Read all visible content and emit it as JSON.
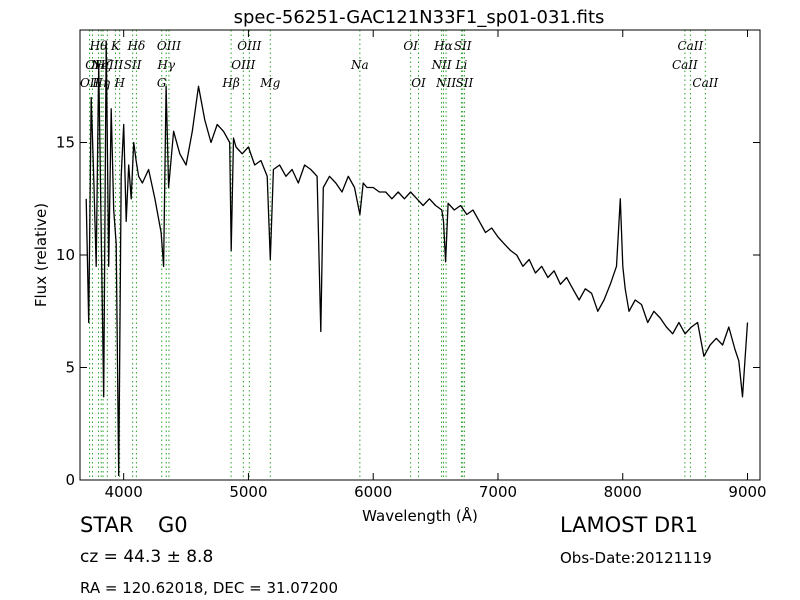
{
  "chart_data": {
    "type": "line",
    "title": "spec-56251-GAC121N33F1_sp01-031.fits",
    "xlabel": "Wavelength (Å)",
    "ylabel": "Flux (relative)",
    "xlim": [
      3650,
      9100
    ],
    "ylim": [
      0,
      20
    ],
    "xticks": [
      4000,
      5000,
      6000,
      7000,
      8000,
      9000
    ],
    "yticks": [
      0,
      5,
      10,
      15
    ],
    "grid": false,
    "line_color": "#000000",
    "marker_color": "#2ca02c",
    "series": [
      {
        "x": [
          3700,
          3720,
          3740,
          3760,
          3780,
          3800,
          3820,
          3840,
          3860,
          3880,
          3900,
          3920,
          3940,
          3960,
          3980,
          4000,
          4020,
          4040,
          4060,
          4080,
          4100,
          4120,
          4150,
          4200,
          4250,
          4300,
          4320,
          4340,
          4360,
          4400,
          4450,
          4500,
          4550,
          4600,
          4650,
          4700,
          4750,
          4800,
          4850,
          4862,
          4880,
          4900,
          4950,
          5000,
          5050,
          5100,
          5150,
          5175,
          5200,
          5250,
          5300,
          5350,
          5400,
          5450,
          5500,
          5550,
          5580,
          5600,
          5650,
          5700,
          5750,
          5800,
          5850,
          5893,
          5920,
          5950,
          6000,
          6050,
          6100,
          6150,
          6200,
          6250,
          6300,
          6350,
          6400,
          6450,
          6500,
          6550,
          6563,
          6580,
          6600,
          6650,
          6700,
          6750,
          6800,
          6850,
          6900,
          6950,
          7000,
          7050,
          7100,
          7150,
          7200,
          7250,
          7300,
          7350,
          7400,
          7450,
          7500,
          7550,
          7600,
          7650,
          7700,
          7750,
          7800,
          7850,
          7900,
          7950,
          7980,
          8000,
          8020,
          8050,
          8100,
          8150,
          8200,
          8250,
          8300,
          8350,
          8400,
          8450,
          8500,
          8550,
          8600,
          8650,
          8700,
          8750,
          8800,
          8850,
          8900,
          8930,
          8960,
          9000
        ],
        "y": [
          12.5,
          7.0,
          17.0,
          13.5,
          9.5,
          18.5,
          11.0,
          3.7,
          19.5,
          9.5,
          16.5,
          12.0,
          10.5,
          0.2,
          13.5,
          15.8,
          11.5,
          14.0,
          12.5,
          15.0,
          14.2,
          13.5,
          13.2,
          13.8,
          12.5,
          11.0,
          9.5,
          17.5,
          13.0,
          15.5,
          14.5,
          14.0,
          15.5,
          17.5,
          16.0,
          15.0,
          15.8,
          15.5,
          15.0,
          10.2,
          15.2,
          14.8,
          14.5,
          14.8,
          14.0,
          14.2,
          13.5,
          9.8,
          13.8,
          14.0,
          13.5,
          13.8,
          13.2,
          14.0,
          13.8,
          13.5,
          6.6,
          13.0,
          13.5,
          13.2,
          12.8,
          13.5,
          13.0,
          11.8,
          13.2,
          13.0,
          13.0,
          12.8,
          12.8,
          12.5,
          12.8,
          12.5,
          12.8,
          12.5,
          12.2,
          12.5,
          12.2,
          12.0,
          11.5,
          9.7,
          12.3,
          12.0,
          12.2,
          11.8,
          12.0,
          11.5,
          11.0,
          11.2,
          10.8,
          10.5,
          10.2,
          10.0,
          9.5,
          9.8,
          9.2,
          9.5,
          9.0,
          9.3,
          8.7,
          9.0,
          8.5,
          8.0,
          8.5,
          8.3,
          7.5,
          8.0,
          8.7,
          9.5,
          12.5,
          9.5,
          8.5,
          7.5,
          8.0,
          7.8,
          7.0,
          7.5,
          7.2,
          6.8,
          6.5,
          7.0,
          6.5,
          6.8,
          7.0,
          5.5,
          6.0,
          6.3,
          6.0,
          6.8,
          5.8,
          5.3,
          3.7,
          7.0
        ]
      }
    ],
    "emission_lines": [
      {
        "wavelength": 3727,
        "label": "OII",
        "row": 2
      },
      {
        "wavelength": 3750,
        "label": "OI",
        "row": 1
      },
      {
        "wavelength": 3798,
        "label": "Hθ",
        "row": 0
      },
      {
        "wavelength": 3820,
        "label": "Hη",
        "row": 2
      },
      {
        "wavelength": 3835,
        "label": "Hζ",
        "row": 1
      },
      {
        "wavelength": 3869,
        "label": "NeIII",
        "row": 1
      },
      {
        "wavelength": 3934,
        "label": "K",
        "row": 0
      },
      {
        "wavelength": 3968,
        "label": "H",
        "row": 2
      },
      {
        "wavelength": 4072,
        "label": "SII",
        "row": 1
      },
      {
        "wavelength": 4102,
        "label": "Hδ",
        "row": 0
      },
      {
        "wavelength": 4305,
        "label": "G",
        "row": 2
      },
      {
        "wavelength": 4341,
        "label": "Hγ",
        "row": 1
      },
      {
        "wavelength": 4363,
        "label": "OIII",
        "row": 0
      },
      {
        "wavelength": 4861,
        "label": "Hβ",
        "row": 2
      },
      {
        "wavelength": 4959,
        "label": "OIII",
        "row": 1
      },
      {
        "wavelength": 5007,
        "label": "OIII",
        "row": 0
      },
      {
        "wavelength": 5175,
        "label": "Mg",
        "row": 2
      },
      {
        "wavelength": 5893,
        "label": "Na",
        "row": 1
      },
      {
        "wavelength": 6300,
        "label": "OI",
        "row": 0
      },
      {
        "wavelength": 6363,
        "label": "OI",
        "row": 2
      },
      {
        "wavelength": 6548,
        "label": "NII",
        "row": 1
      },
      {
        "wavelength": 6563,
        "label": "Hα",
        "row": 0
      },
      {
        "wavelength": 6584,
        "label": "NII",
        "row": 2
      },
      {
        "wavelength": 6707,
        "label": "Li",
        "row": 1
      },
      {
        "wavelength": 6717,
        "label": "SII",
        "row": 0
      },
      {
        "wavelength": 6731,
        "label": "SII",
        "row": 2
      },
      {
        "wavelength": 8498,
        "label": "CaII",
        "row": 1
      },
      {
        "wavelength": 8542,
        "label": "CaII",
        "row": 0
      },
      {
        "wavelength": 8662,
        "label": "CaII",
        "row": 2
      }
    ]
  },
  "info": {
    "class": "STAR",
    "subclass": "G0",
    "cz": "cz = 44.3 ± 8.8",
    "coords": "RA = 120.62018, DEC = 31.07200",
    "survey": "LAMOST DR1",
    "obs_date": "Obs-Date:20121119"
  }
}
